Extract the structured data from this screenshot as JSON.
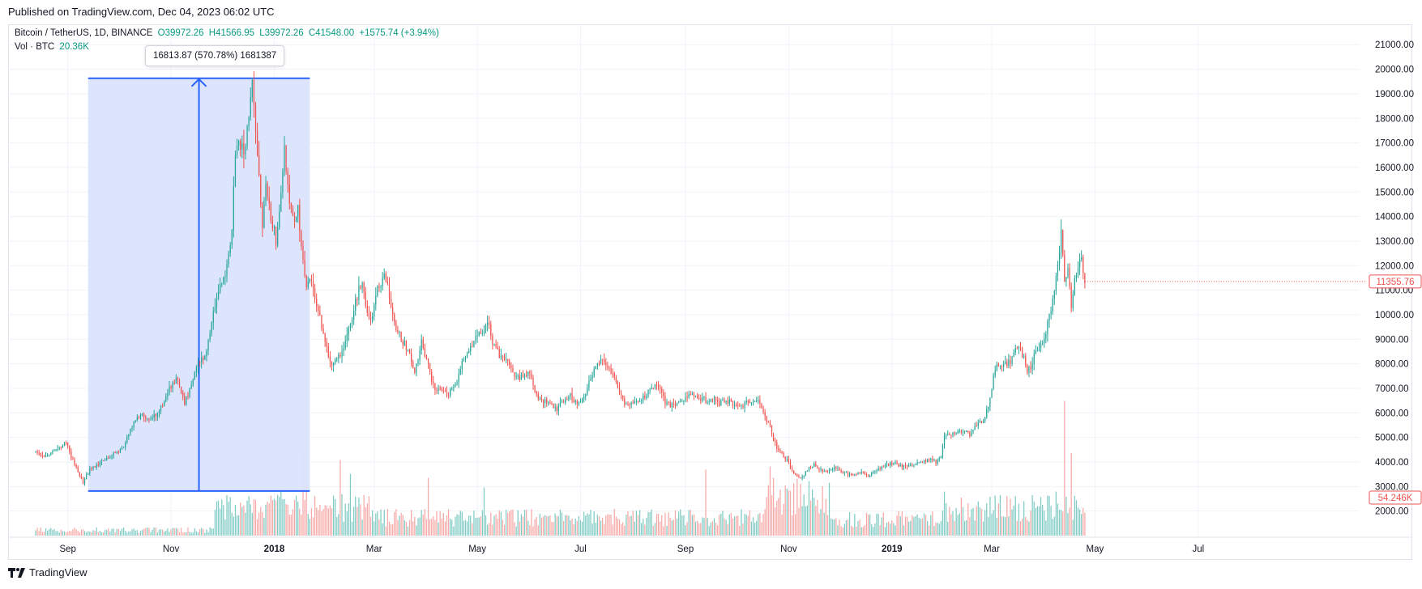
{
  "header": {
    "published": "Published on TradingView.com, Dec 04, 2023 06:02 UTC"
  },
  "legend": {
    "symbol": "Bitcoin / TetherUS, 1D, BINANCE",
    "open": "O39972.26",
    "high": "H41566.95",
    "low": "L39972.26",
    "close": "C41548.00",
    "change": "+1575.74 (+3.94%)",
    "volume_label": "Vol · BTC",
    "volume_value": "20.36K"
  },
  "measure_tool": {
    "label": "16813.87 (570.78%) 1681387"
  },
  "footer": {
    "brand": "TradingView"
  },
  "colors": {
    "up": "#26a69a",
    "down": "#ef5350",
    "volume_up": "#80cbc4",
    "volume_down": "#f7a9a7",
    "grid": "#f0f3fa",
    "measure_fill": "#dbe4fd",
    "measure_line": "#2962ff"
  },
  "chart_data": {
    "type": "candlestick",
    "title": "Bitcoin / TetherUS, 1D, BINANCE",
    "ylim": [
      1000,
      21700
    ],
    "y_ticks": [
      2000,
      3000,
      4000,
      5000,
      6000,
      7000,
      8000,
      9000,
      10000,
      11000,
      12000,
      13000,
      14000,
      15000,
      16000,
      17000,
      18000,
      19000,
      20000,
      21000
    ],
    "y_tick_labels": [
      "2000.00",
      "3000.00",
      "4000.00",
      "5000.00",
      "6000.00",
      "7000.00",
      "8000.00",
      "9000.00",
      "10000.00",
      "11000.00",
      "12000.00",
      "13000.00",
      "14000.00",
      "15000.00",
      "16000.00",
      "17000.00",
      "18000.00",
      "19000.00",
      "20000.00",
      "21000.00"
    ],
    "x_ticks": [
      {
        "label": "Sep",
        "day": 19,
        "bold": false
      },
      {
        "label": "Nov",
        "day": 80,
        "bold": false
      },
      {
        "label": "2018",
        "day": 141,
        "bold": true
      },
      {
        "label": "Mar",
        "day": 200,
        "bold": false
      },
      {
        "label": "May",
        "day": 261,
        "bold": false
      },
      {
        "label": "Jul",
        "day": 322,
        "bold": false
      },
      {
        "label": "Sep",
        "day": 384,
        "bold": false
      },
      {
        "label": "Nov",
        "day": 445,
        "bold": false
      },
      {
        "label": "2019",
        "day": 506,
        "bold": true
      },
      {
        "label": "Mar",
        "day": 565,
        "bold": false
      },
      {
        "label": "May",
        "day": 626,
        "bold": false
      },
      {
        "label": "Jul",
        "day": 687,
        "bold": false
      }
    ],
    "day_range": [
      0,
      705
    ],
    "close_anchors": [
      [
        0,
        4400
      ],
      [
        5,
        4150
      ],
      [
        10,
        4450
      ],
      [
        15,
        4650
      ],
      [
        18,
        4850
      ],
      [
        21,
        4200
      ],
      [
        25,
        3600
      ],
      [
        28,
        3150
      ],
      [
        32,
        3700
      ],
      [
        38,
        3950
      ],
      [
        45,
        4300
      ],
      [
        52,
        4600
      ],
      [
        58,
        5600
      ],
      [
        62,
        5950
      ],
      [
        68,
        5700
      ],
      [
        75,
        6350
      ],
      [
        80,
        7100
      ],
      [
        84,
        7400
      ],
      [
        88,
        6350
      ],
      [
        92,
        7200
      ],
      [
        96,
        8000
      ],
      [
        100,
        8200
      ],
      [
        104,
        9600
      ],
      [
        108,
        11000
      ],
      [
        112,
        11600
      ],
      [
        116,
        13500
      ],
      [
        118,
        16500
      ],
      [
        120,
        17000
      ],
      [
        124,
        16800
      ],
      [
        126,
        18000
      ],
      [
        128,
        19400
      ],
      [
        131,
        16800
      ],
      [
        134,
        13500
      ],
      [
        136,
        15500
      ],
      [
        139,
        14000
      ],
      [
        142,
        13000
      ],
      [
        145,
        15000
      ],
      [
        147,
        16800
      ],
      [
        150,
        14500
      ],
      [
        153,
        13800
      ],
      [
        155,
        14300
      ],
      [
        158,
        12000
      ],
      [
        160,
        11200
      ],
      [
        163,
        11400
      ],
      [
        167,
        10100
      ],
      [
        171,
        9000
      ],
      [
        175,
        7800
      ],
      [
        178,
        8200
      ],
      [
        182,
        8500
      ],
      [
        186,
        9600
      ],
      [
        190,
        10800
      ],
      [
        193,
        11300
      ],
      [
        195,
        10300
      ],
      [
        198,
        9700
      ],
      [
        202,
        11000
      ],
      [
        206,
        11500
      ],
      [
        208,
        11050
      ],
      [
        212,
        9600
      ],
      [
        216,
        9000
      ],
      [
        220,
        8600
      ],
      [
        224,
        7600
      ],
      [
        228,
        8900
      ],
      [
        232,
        7900
      ],
      [
        236,
        6900
      ],
      [
        240,
        7000
      ],
      [
        244,
        6800
      ],
      [
        248,
        7100
      ],
      [
        252,
        8000
      ],
      [
        256,
        8600
      ],
      [
        260,
        9100
      ],
      [
        264,
        9300
      ],
      [
        267,
        9800
      ],
      [
        270,
        8900
      ],
      [
        275,
        8200
      ],
      [
        280,
        8000
      ],
      [
        284,
        7400
      ],
      [
        288,
        7500
      ],
      [
        292,
        7600
      ],
      [
        296,
        6700
      ],
      [
        300,
        6500
      ],
      [
        304,
        6400
      ],
      [
        308,
        6100
      ],
      [
        312,
        6500
      ],
      [
        316,
        6700
      ],
      [
        320,
        6300
      ],
      [
        324,
        6600
      ],
      [
        328,
        7400
      ],
      [
        332,
        8100
      ],
      [
        336,
        8200
      ],
      [
        340,
        7700
      ],
      [
        344,
        7000
      ],
      [
        348,
        6400
      ],
      [
        352,
        6300
      ],
      [
        356,
        6500
      ],
      [
        360,
        6700
      ],
      [
        364,
        7000
      ],
      [
        368,
        7200
      ],
      [
        372,
        6400
      ],
      [
        376,
        6300
      ],
      [
        380,
        6500
      ],
      [
        384,
        6600
      ],
      [
        388,
        6700
      ],
      [
        392,
        6600
      ],
      [
        396,
        6500
      ],
      [
        400,
        6600
      ],
      [
        404,
        6400
      ],
      [
        408,
        6500
      ],
      [
        412,
        6400
      ],
      [
        416,
        6300
      ],
      [
        420,
        6350
      ],
      [
        424,
        6400
      ],
      [
        428,
        6450
      ],
      [
        432,
        5700
      ],
      [
        434,
        5500
      ],
      [
        436,
        4800
      ],
      [
        440,
        4400
      ],
      [
        444,
        4100
      ],
      [
        448,
        3500
      ],
      [
        452,
        3300
      ],
      [
        456,
        3700
      ],
      [
        460,
        3900
      ],
      [
        464,
        3700
      ],
      [
        468,
        3600
      ],
      [
        472,
        3800
      ],
      [
        476,
        3600
      ],
      [
        480,
        3500
      ],
      [
        484,
        3450
      ],
      [
        488,
        3600
      ],
      [
        492,
        3400
      ],
      [
        496,
        3650
      ],
      [
        500,
        3800
      ],
      [
        504,
        3900
      ],
      [
        508,
        3950
      ],
      [
        512,
        3800
      ],
      [
        516,
        3850
      ],
      [
        520,
        3900
      ],
      [
        524,
        4000
      ],
      [
        528,
        4100
      ],
      [
        532,
        4000
      ],
      [
        535,
        4200
      ],
      [
        537,
        5000
      ],
      [
        540,
        5100
      ],
      [
        544,
        5200
      ],
      [
        548,
        5300
      ],
      [
        552,
        5100
      ],
      [
        556,
        5500
      ],
      [
        560,
        5700
      ],
      [
        563,
        6300
      ],
      [
        566,
        7400
      ],
      [
        568,
        8000
      ],
      [
        570,
        7800
      ],
      [
        572,
        8000
      ],
      [
        576,
        8100
      ],
      [
        580,
        8700
      ],
      [
        584,
        8300
      ],
      [
        586,
        7700
      ],
      [
        588,
        7900
      ],
      [
        592,
        8600
      ],
      [
        596,
        9000
      ],
      [
        600,
        10300
      ],
      [
        602,
        11100
      ],
      [
        604,
        12000
      ],
      [
        606,
        13500
      ],
      [
        608,
        11200
      ],
      [
        610,
        11800
      ],
      [
        612,
        10300
      ],
      [
        614,
        11300
      ],
      [
        616,
        11900
      ],
      [
        618,
        12300
      ],
      [
        620,
        11355
      ]
    ],
    "last_price": 11355.76,
    "last_price_label": "11355.76",
    "last_volume_label": "54.246K",
    "measure": {
      "start_day": 31,
      "end_day": 162,
      "low_price": 2817,
      "high_price": 19630,
      "change": 16813.87,
      "change_pct": 570.78
    },
    "volume_spikes": [
      {
        "day": 145,
        "value": 0.4
      },
      {
        "day": 158,
        "value": 0.62
      },
      {
        "day": 160,
        "value": 0.52
      },
      {
        "day": 180,
        "value": 0.55
      },
      {
        "day": 186,
        "value": 0.45
      },
      {
        "day": 232,
        "value": 0.42
      },
      {
        "day": 265,
        "value": 0.35
      },
      {
        "day": 396,
        "value": 0.48
      },
      {
        "day": 434,
        "value": 0.5
      },
      {
        "day": 436,
        "value": 0.42
      },
      {
        "day": 448,
        "value": 0.38
      },
      {
        "day": 537,
        "value": 0.32
      },
      {
        "day": 603,
        "value": 0.32
      },
      {
        "day": 608,
        "value": 0.98
      },
      {
        "day": 612,
        "value": 0.6
      }
    ]
  }
}
